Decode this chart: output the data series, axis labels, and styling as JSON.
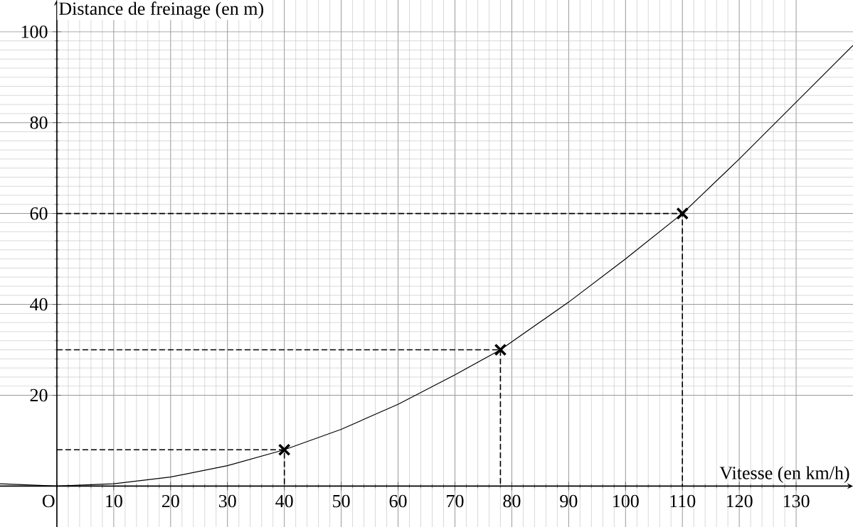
{
  "chart_data": {
    "type": "line",
    "xlabel": "Vitesse (en km/h)",
    "ylabel": "Distance de freinage (en m)",
    "xlim": [
      -10,
      140
    ],
    "ylim": [
      -9,
      107
    ],
    "xticks": [
      {
        "value": 0,
        "label": "O"
      },
      10,
      20,
      30,
      40,
      50,
      60,
      70,
      80,
      90,
      100,
      110,
      120,
      130
    ],
    "yticks": [
      20,
      40,
      60,
      80,
      100
    ],
    "grid": true,
    "series": [
      {
        "color": "#000000",
        "line_style": "solid",
        "marker": "none",
        "x": [
          -10,
          0,
          10,
          20,
          30,
          40,
          50,
          60,
          70,
          78,
          90,
          100,
          110,
          120,
          130,
          140
        ],
        "values": [
          0.5,
          0,
          0.5,
          2,
          4.5,
          8,
          12.5,
          18,
          24.5,
          30,
          40.5,
          50,
          60,
          72,
          84.5,
          97
        ]
      },
      {
        "type": "line",
        "color": "#000000",
        "line_style": "dashed",
        "marker": "none",
        "x": [
          0,
          40,
          40
        ],
        "values": [
          8,
          8,
          0
        ]
      },
      {
        "type": "line",
        "color": "#000000",
        "line_style": "dashed",
        "marker": "none",
        "x": [
          0,
          78,
          78
        ],
        "values": [
          30,
          30,
          0
        ]
      },
      {
        "type": "line",
        "color": "#000000",
        "line_style": "dashed",
        "marker": "none",
        "x": [
          0,
          110,
          110
        ],
        "values": [
          60,
          60,
          0
        ]
      },
      {
        "type": "scatter",
        "color": "#000000",
        "marker": "cross",
        "x": [
          40,
          78,
          110
        ],
        "values": [
          8,
          30,
          60
        ]
      }
    ]
  }
}
